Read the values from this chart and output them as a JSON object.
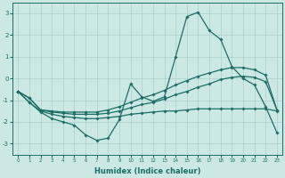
{
  "xlabel": "Humidex (Indice chaleur)",
  "background_color": "#cce8e4",
  "grid_color": "#aad0cc",
  "line_color": "#1a6e65",
  "x": [
    0,
    1,
    2,
    3,
    4,
    5,
    6,
    7,
    8,
    9,
    10,
    11,
    12,
    13,
    14,
    15,
    16,
    17,
    18,
    19,
    20,
    21,
    22,
    23
  ],
  "curve_main": [
    -0.6,
    -1.1,
    -1.55,
    -1.85,
    -2.0,
    -2.15,
    -2.6,
    -2.85,
    -2.75,
    -1.9,
    -0.25,
    -0.85,
    -1.05,
    -0.85,
    1.0,
    2.85,
    3.05,
    2.2,
    1.8,
    0.55,
    0.0,
    -0.3,
    -1.3,
    -2.5
  ],
  "curve_upper": [
    -0.6,
    -0.9,
    -1.45,
    -1.5,
    -1.55,
    -1.55,
    -1.55,
    -1.55,
    -1.45,
    -1.3,
    -1.1,
    -0.9,
    -0.75,
    -0.55,
    -0.3,
    -0.1,
    0.1,
    0.25,
    0.4,
    0.5,
    0.5,
    0.4,
    0.15,
    -1.45
  ],
  "curve_mid": [
    -0.6,
    -0.9,
    -1.45,
    -1.55,
    -1.6,
    -1.65,
    -1.65,
    -1.65,
    -1.6,
    -1.5,
    -1.35,
    -1.2,
    -1.1,
    -0.95,
    -0.75,
    -0.6,
    -0.4,
    -0.25,
    -0.05,
    0.05,
    0.1,
    0.05,
    -0.15,
    -1.45
  ],
  "curve_lower": [
    -0.6,
    -1.1,
    -1.5,
    -1.65,
    -1.75,
    -1.8,
    -1.85,
    -1.85,
    -1.8,
    -1.75,
    -1.65,
    -1.6,
    -1.55,
    -1.5,
    -1.5,
    -1.45,
    -1.4,
    -1.4,
    -1.4,
    -1.4,
    -1.4,
    -1.4,
    -1.4,
    -1.5
  ],
  "xlim": [
    -0.5,
    23.5
  ],
  "ylim": [
    -3.5,
    3.5
  ],
  "yticks": [
    -3,
    -2,
    -1,
    0,
    1,
    2,
    3
  ],
  "xticks": [
    0,
    1,
    2,
    3,
    4,
    5,
    6,
    7,
    8,
    9,
    10,
    11,
    12,
    13,
    14,
    15,
    16,
    17,
    18,
    19,
    20,
    21,
    22,
    23
  ]
}
